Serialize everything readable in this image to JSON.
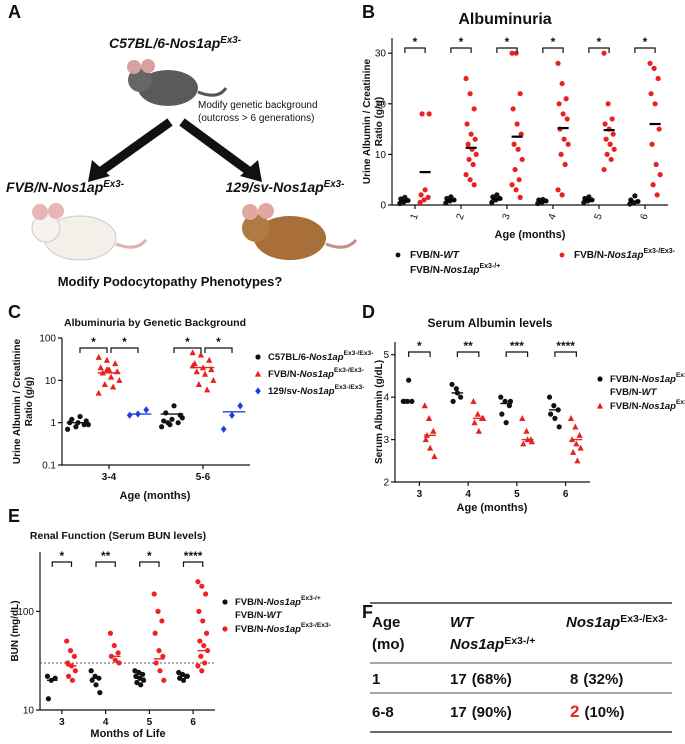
{
  "panel_labels": [
    "A",
    "B",
    "C",
    "D",
    "E",
    "F"
  ],
  "diagram": {
    "top": [
      {
        "text": "C57BL/6-"
      },
      {
        "text": "Nos1ap",
        "italic": true
      },
      {
        "text": "Ex3-",
        "sup": true
      }
    ],
    "note": [
      "Modify genetic background",
      "(outcross > 6 generations)"
    ],
    "left": [
      {
        "text": "FVB/N-"
      },
      {
        "text": "Nos1ap",
        "italic": true
      },
      {
        "text": "Ex3-",
        "sup": true
      }
    ],
    "right": [
      {
        "text": "129/sv-"
      },
      {
        "text": "Nos1ap",
        "italic": true
      },
      {
        "text": "Ex3-",
        "sup": true
      }
    ],
    "bottom": "Modify Podocytopathy Phenotypes?"
  },
  "chart_data": [
    {
      "type": "dot",
      "title": "Albuminuria",
      "xlabel": "Age (months)",
      "ylabel": [
        "Urine Albumin / Creatinine",
        "Ratio (g/g)"
      ],
      "categories": [
        "1",
        "2",
        "3",
        "4",
        "5",
        "6"
      ],
      "ylim": [
        0,
        33
      ],
      "yticks": [
        0,
        10,
        20,
        30
      ],
      "log": false,
      "legend": "bottom",
      "mean_color": "#000000",
      "significance": [
        "*",
        "*",
        "*",
        "*",
        "*",
        "*"
      ],
      "series": [
        {
          "name": [
            [
              {
                "text": "FVB/N-"
              },
              {
                "text": "WT",
                "italic": true
              }
            ],
            [
              {
                "text": "FVB/N-"
              },
              {
                "text": "Nos1ap",
                "italic": true
              },
              {
                "text": "Ex3-/+",
                "sup": true
              }
            ]
          ],
          "color": "#111111",
          "marker": "circle",
          "values": [
            [
              0.3,
              0.6,
              0.9,
              1.2,
              1.5
            ],
            [
              0.4,
              0.8,
              1,
              1.3,
              1.6
            ],
            [
              0.5,
              1,
              1.3,
              1.6,
              2
            ],
            [
              0.3,
              0.5,
              0.8,
              1,
              1.1
            ],
            [
              0.5,
              0.8,
              1,
              1.3,
              1.6
            ],
            [
              0.2,
              0.4,
              0.7,
              1,
              1.8
            ]
          ],
          "means": [
            0.8,
            1,
            1.2,
            0.7,
            1,
            0.7
          ]
        },
        {
          "name": [
            [
              {
                "text": "FVB/N-"
              },
              {
                "text": "Nos1ap",
                "italic": true
              },
              {
                "text": "Ex3-/Ex3-",
                "sup": true
              }
            ]
          ],
          "color": "#e8231f",
          "marker": "circle",
          "values": [
            [
              0.5,
              1,
              1.5,
              2,
              3,
              18,
              18
            ],
            [
              25,
              22,
              19,
              16,
              14,
              13,
              12,
              11,
              10,
              9,
              8,
              6,
              5,
              4
            ],
            [
              30,
              30,
              22,
              19,
              16,
              14,
              12,
              11,
              9,
              7,
              5,
              4,
              3,
              1.5
            ],
            [
              28,
              24,
              21,
              20,
              18,
              17,
              15,
              13,
              12,
              10,
              8,
              3,
              2
            ],
            [
              30,
              20,
              17,
              16,
              15,
              14,
              13,
              12,
              11,
              10,
              9,
              7
            ],
            [
              28,
              27,
              25,
              22,
              20,
              15,
              12,
              8,
              6,
              4,
              2
            ]
          ],
          "means": [
            6.5,
            11.3,
            13.5,
            15.2,
            14.8,
            16
          ]
        }
      ]
    },
    {
      "type": "dot",
      "title": "Albuminuria by Genetic Background",
      "xlabel": "Age (months)",
      "ylabel": [
        "Urine Albumin / Creatinine",
        "Ratio (g/g)"
      ],
      "categories": [
        "3-4",
        "5-6"
      ],
      "ylim": [
        0.1,
        100
      ],
      "yticks": [
        0.1,
        1,
        10,
        100
      ],
      "log": true,
      "legend": "right",
      "significance": [
        [
          "*",
          "*"
        ],
        [
          "*",
          "*"
        ]
      ],
      "series": [
        {
          "name": [
            [
              {
                "text": "C57BL/6-"
              },
              {
                "text": "Nos1ap",
                "italic": true
              },
              {
                "text": "Ex3-/Ex3-",
                "sup": true
              }
            ]
          ],
          "color": "#111111",
          "marker": "circle",
          "values": [
            [
              0.7,
              0.8,
              0.9,
              1,
              1,
              1.1,
              1.2,
              1.4,
              0.9
            ],
            [
              0.8,
              0.9,
              1,
              1.1,
              1.2,
              1.5,
              1.7,
              2.5,
              1.3,
              1
            ]
          ],
          "means": [
            1,
            1.6
          ]
        },
        {
          "name": [
            [
              {
                "text": "FVB/N-"
              },
              {
                "text": "Nos1ap",
                "italic": true
              },
              {
                "text": "Ex3-/Ex3-",
                "sup": true
              }
            ]
          ],
          "color": "#e8231f",
          "marker": "triangle",
          "values": [
            [
              35,
              30,
              25,
              20,
              18,
              16,
              15,
              12,
              10,
              8,
              7,
              5,
              18
            ],
            [
              45,
              40,
              30,
              25,
              20,
              18,
              16,
              14,
              10,
              8,
              6,
              22
            ]
          ],
          "means": [
            15,
            20
          ]
        },
        {
          "name": [
            [
              {
                "text": "129/sv-"
              },
              {
                "text": "Nos1ap",
                "italic": true
              },
              {
                "text": "Ex3-/Ex3-",
                "sup": true
              }
            ]
          ],
          "color": "#1f3fe0",
          "marker": "diamond",
          "values": [
            [
              1.5,
              1.6,
              2
            ],
            [
              0.7,
              1.5,
              2.5
            ]
          ],
          "means": [
            1.6,
            1.8
          ]
        }
      ]
    },
    {
      "type": "dot",
      "title": "Serum Albumin levels",
      "xlabel": "Age (months)",
      "ylabel": [
        "Serum Albumin (g/dL)"
      ],
      "categories": [
        "3",
        "4",
        "5",
        "6"
      ],
      "ylim": [
        2,
        5.3
      ],
      "yticks": [
        2,
        3,
        4,
        5
      ],
      "log": false,
      "legend": "right",
      "significance": [
        "*",
        "**",
        "***",
        "****"
      ],
      "series": [
        {
          "name": [
            [
              {
                "text": "FVB/N-"
              },
              {
                "text": "Nos1ap",
                "italic": true
              },
              {
                "text": "Ex3-/+",
                "sup": true
              }
            ],
            [
              {
                "text": "FVB/N-"
              },
              {
                "text": "WT",
                "italic": true
              }
            ]
          ],
          "color": "#111111",
          "marker": "circle",
          "values": [
            [
              3.9,
              3.9,
              3.9,
              3.9,
              4.4
            ],
            [
              4.3,
              4.2,
              4,
              3.9,
              4.1
            ],
            [
              4,
              3.9,
              3.8,
              3.6,
              3.4,
              3.9
            ],
            [
              4,
              3.8,
              3.7,
              3.6,
              3.5,
              3.3
            ]
          ],
          "means": [
            3.9,
            4.1,
            3.85,
            3.7
          ]
        },
        {
          "name": [
            [
              {
                "text": "FVB/N-"
              },
              {
                "text": "Nos1ap",
                "italic": true
              },
              {
                "text": "Ex3-/Ex3-",
                "sup": true
              }
            ]
          ],
          "color": "#e8231f",
          "marker": "triangle",
          "values": [
            [
              3.8,
              3.5,
              3.2,
              3,
              2.8,
              2.6,
              3.1
            ],
            [
              3.9,
              3.6,
              3.5,
              3.4,
              3.2,
              3.5
            ],
            [
              3.5,
              3.2,
              3,
              2.9,
              3,
              2.95
            ],
            [
              3.5,
              3.3,
              3.1,
              3,
              2.9,
              2.8,
              2.7,
              2.5
            ]
          ],
          "means": [
            3.1,
            3.5,
            3,
            3
          ]
        }
      ]
    },
    {
      "type": "dot",
      "title": "Renal Function (Serum BUN levels)",
      "xlabel": "Months of Life",
      "ylabel": [
        "BUN (mg/dL)"
      ],
      "categories": [
        "3",
        "4",
        "5",
        "6"
      ],
      "ylim": [
        10,
        400
      ],
      "yticks": [
        10,
        100
      ],
      "log": true,
      "legend": "right",
      "reference_line": 30,
      "significance": [
        "*",
        "**",
        "*",
        "****"
      ],
      "series": [
        {
          "name": [
            [
              {
                "text": "FVB/N-"
              },
              {
                "text": "Nos1ap",
                "italic": true
              },
              {
                "text": "Ex3-/+",
                "sup": true
              }
            ],
            [
              {
                "text": "FVB/N-"
              },
              {
                "text": "WT",
                "italic": true
              }
            ]
          ],
          "color": "#111111",
          "marker": "circle",
          "values": [
            [
              22,
              20,
              21,
              13
            ],
            [
              25,
              22,
              21,
              20,
              18,
              15
            ],
            [
              25,
              24,
              23,
              22,
              21,
              20,
              19,
              18
            ],
            [
              24,
              23,
              22,
              21,
              20,
              22
            ]
          ],
          "means": [
            20,
            21,
            21,
            22
          ]
        },
        {
          "name": [
            [
              {
                "text": "FVB/N-"
              },
              {
                "text": "Nos1ap",
                "italic": true
              },
              {
                "text": "Ex3-/Ex3-",
                "sup": true
              }
            ]
          ],
          "color": "#ee2222",
          "marker": "circle",
          "values": [
            [
              50,
              40,
              35,
              30,
              28,
              25,
              22,
              20
            ],
            [
              60,
              45,
              38,
              35,
              32,
              30
            ],
            [
              150,
              100,
              80,
              60,
              40,
              35,
              30,
              25,
              20
            ],
            [
              200,
              180,
              150,
              100,
              80,
              60,
              50,
              45,
              40,
              35,
              30,
              28,
              25
            ]
          ],
          "means": [
            28,
            35,
            33,
            40
          ]
        }
      ]
    }
  ],
  "table": {
    "header": [
      [
        [
          {
            "text": "Age"
          }
        ],
        [
          {
            "text": "(mo)"
          }
        ]
      ],
      [
        [
          {
            "text": "WT",
            "italic": true
          }
        ],
        [
          {
            "text": "Nos1ap",
            "italic": true
          },
          {
            "text": "Ex3-/+",
            "sup": true
          }
        ]
      ],
      [
        [
          {
            "text": "Nos1ap",
            "italic": true
          },
          {
            "text": "Ex3-/Ex3-",
            "sup": true
          }
        ]
      ]
    ],
    "rows": [
      [
        "1",
        [
          "17",
          "(68%)"
        ],
        [
          "8",
          "(32%)"
        ]
      ],
      [
        "6-8",
        [
          "17",
          "(90%)"
        ],
        [
          "2",
          "(10%)"
        ]
      ]
    ]
  }
}
